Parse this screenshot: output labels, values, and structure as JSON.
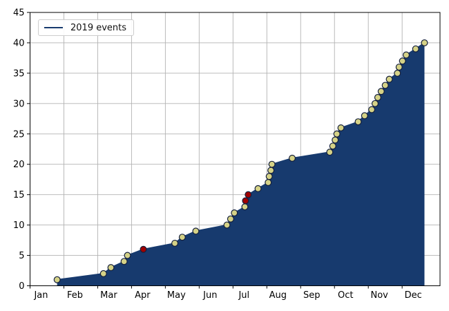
{
  "chart_data": {
    "type": "area",
    "title": "",
    "legend_label": "2019 events",
    "legend_position": "upper left",
    "grid": true,
    "x_tick_labels": [
      "Jan",
      "Feb",
      "Mar",
      "Apr",
      "May",
      "Jun",
      "Jul",
      "Aug",
      "Sep",
      "Oct",
      "Nov",
      "Dec"
    ],
    "y_ticks": [
      0,
      5,
      10,
      15,
      20,
      25,
      30,
      35,
      40,
      45
    ],
    "ylim": [
      0,
      45
    ],
    "xlim_months": [
      0,
      12.12
    ],
    "xlabel": "",
    "ylabel": "",
    "colors": {
      "line": "#173a6e",
      "fill": "#173a6e",
      "marker": "#d5d287",
      "marker_highlight": "#a00000",
      "marker_edge": "#141f3c",
      "gridline": "#b2b2b2",
      "axis": "#000000",
      "legend_border": "#cccccc"
    },
    "series": [
      {
        "name": "2019 events",
        "note": "x is month fraction from Jan 1 (0=Jan, 11=Dec); y is cumulative event count; highlight = dark red marker",
        "points": [
          {
            "x": 0.8,
            "y": 1,
            "highlight": false
          },
          {
            "x": 2.17,
            "y": 2,
            "highlight": false
          },
          {
            "x": 2.39,
            "y": 3,
            "highlight": false
          },
          {
            "x": 2.78,
            "y": 4,
            "highlight": false
          },
          {
            "x": 2.88,
            "y": 5,
            "highlight": false
          },
          {
            "x": 3.35,
            "y": 6,
            "highlight": true
          },
          {
            "x": 4.28,
            "y": 7,
            "highlight": false
          },
          {
            "x": 4.5,
            "y": 8,
            "highlight": false
          },
          {
            "x": 4.9,
            "y": 9,
            "highlight": false
          },
          {
            "x": 5.82,
            "y": 10,
            "highlight": false
          },
          {
            "x": 5.93,
            "y": 11,
            "highlight": false
          },
          {
            "x": 6.04,
            "y": 12,
            "highlight": false
          },
          {
            "x": 6.35,
            "y": 13,
            "highlight": false
          },
          {
            "x": 6.37,
            "y": 14,
            "highlight": true
          },
          {
            "x": 6.45,
            "y": 15,
            "highlight": true
          },
          {
            "x": 6.74,
            "y": 16,
            "highlight": false
          },
          {
            "x": 7.04,
            "y": 17,
            "highlight": false
          },
          {
            "x": 7.07,
            "y": 18,
            "highlight": false
          },
          {
            "x": 7.12,
            "y": 19,
            "highlight": false
          },
          {
            "x": 7.15,
            "y": 20,
            "highlight": false
          },
          {
            "x": 7.75,
            "y": 21,
            "highlight": false
          },
          {
            "x": 8.86,
            "y": 22,
            "highlight": false
          },
          {
            "x": 8.95,
            "y": 23,
            "highlight": false
          },
          {
            "x": 9.02,
            "y": 24,
            "highlight": false
          },
          {
            "x": 9.07,
            "y": 25,
            "highlight": false
          },
          {
            "x": 9.19,
            "y": 26,
            "highlight": false
          },
          {
            "x": 9.7,
            "y": 27,
            "highlight": false
          },
          {
            "x": 9.89,
            "y": 28,
            "highlight": false
          },
          {
            "x": 10.1,
            "y": 29,
            "highlight": false
          },
          {
            "x": 10.2,
            "y": 30,
            "highlight": false
          },
          {
            "x": 10.28,
            "y": 31,
            "highlight": false
          },
          {
            "x": 10.38,
            "y": 32,
            "highlight": false
          },
          {
            "x": 10.5,
            "y": 33,
            "highlight": false
          },
          {
            "x": 10.62,
            "y": 34,
            "highlight": false
          },
          {
            "x": 10.86,
            "y": 35,
            "highlight": false
          },
          {
            "x": 10.91,
            "y": 36,
            "highlight": false
          },
          {
            "x": 11.01,
            "y": 37,
            "highlight": false
          },
          {
            "x": 11.12,
            "y": 38,
            "highlight": false
          },
          {
            "x": 11.4,
            "y": 39,
            "highlight": false
          },
          {
            "x": 11.66,
            "y": 40,
            "highlight": false
          }
        ]
      }
    ]
  }
}
